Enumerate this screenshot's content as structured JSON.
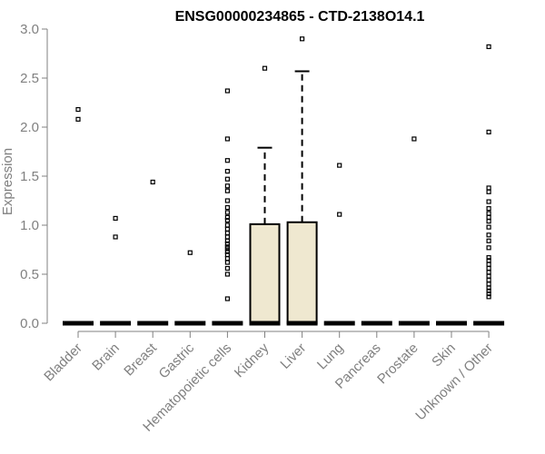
{
  "chart_data": {
    "type": "box",
    "title": "ENSG00000234865 - CTD-2138O14.1",
    "xlabel": "",
    "ylabel": "Expression",
    "ylim": [
      0,
      3.0
    ],
    "yticks": [
      "0.0",
      "0.5",
      "1.0",
      "1.5",
      "2.0",
      "2.5",
      "3.0"
    ],
    "categories": [
      "Bladder",
      "Brain",
      "Breast",
      "Gastric",
      "Hematopoietic cells",
      "Kidney",
      "Liver",
      "Lung",
      "Pancreas",
      "Prostate",
      "Skin",
      "Unknown / Other"
    ],
    "boxes": [
      {
        "category": "Bladder",
        "q1": 0,
        "median": 0,
        "q3": 0,
        "whisker_low": 0,
        "whisker_high": 0
      },
      {
        "category": "Brain",
        "q1": 0,
        "median": 0,
        "q3": 0,
        "whisker_low": 0,
        "whisker_high": 0
      },
      {
        "category": "Breast",
        "q1": 0,
        "median": 0,
        "q3": 0,
        "whisker_low": 0,
        "whisker_high": 0
      },
      {
        "category": "Gastric",
        "q1": 0,
        "median": 0,
        "q3": 0,
        "whisker_low": 0,
        "whisker_high": 0
      },
      {
        "category": "Hematopoietic cells",
        "q1": 0,
        "median": 0,
        "q3": 0,
        "whisker_low": 0,
        "whisker_high": 0
      },
      {
        "category": "Kidney",
        "q1": 0,
        "median": 0,
        "q3": 1.01,
        "whisker_low": 0,
        "whisker_high": 1.79
      },
      {
        "category": "Liver",
        "q1": 0,
        "median": 0,
        "q3": 1.03,
        "whisker_low": 0,
        "whisker_high": 2.57
      },
      {
        "category": "Lung",
        "q1": 0,
        "median": 0,
        "q3": 0,
        "whisker_low": 0,
        "whisker_high": 0
      },
      {
        "category": "Pancreas",
        "q1": 0,
        "median": 0,
        "q3": 0,
        "whisker_low": 0,
        "whisker_high": 0
      },
      {
        "category": "Prostate",
        "q1": 0,
        "median": 0,
        "q3": 0,
        "whisker_low": 0,
        "whisker_high": 0
      },
      {
        "category": "Skin",
        "q1": 0,
        "median": 0,
        "q3": 0,
        "whisker_low": 0,
        "whisker_high": 0
      },
      {
        "category": "Unknown / Other",
        "q1": 0,
        "median": 0,
        "q3": 0,
        "whisker_low": 0,
        "whisker_high": 0
      }
    ],
    "outliers": [
      {
        "category": "Bladder",
        "values": [
          2.18,
          2.08
        ]
      },
      {
        "category": "Brain",
        "values": [
          1.07,
          0.88
        ]
      },
      {
        "category": "Breast",
        "values": [
          1.44
        ]
      },
      {
        "category": "Gastric",
        "values": [
          0.72
        ]
      },
      {
        "category": "Hematopoietic cells",
        "values": [
          2.37,
          1.88,
          1.66,
          1.55,
          1.47,
          1.4,
          1.35,
          1.25,
          1.18,
          1.13,
          1.08,
          1.05,
          1.0,
          0.96,
          0.92,
          0.88,
          0.84,
          0.81,
          0.78,
          0.76,
          0.73,
          0.7,
          0.66,
          0.62,
          0.56,
          0.5,
          0.25
        ]
      },
      {
        "category": "Kidney",
        "values": [
          2.6
        ]
      },
      {
        "category": "Liver",
        "values": [
          2.9
        ]
      },
      {
        "category": "Lung",
        "values": [
          1.61,
          1.11
        ]
      },
      {
        "category": "Prostate",
        "values": [
          1.88
        ]
      },
      {
        "category": "Unknown / Other",
        "values": [
          2.82,
          1.95,
          1.38,
          1.34,
          1.24,
          1.17,
          1.12,
          1.08,
          1.04,
          0.98,
          0.9,
          0.84,
          0.77,
          0.67,
          0.64,
          0.6,
          0.56,
          0.52,
          0.48,
          0.44,
          0.4,
          0.36,
          0.33,
          0.3,
          0.27
        ]
      }
    ],
    "grid": false,
    "legend": "none",
    "colors": {
      "box_fill": "#EFE8D0",
      "box_stroke": "#000000",
      "axis": "#808080",
      "text_muted": "#808080",
      "outlier": "#000000"
    }
  }
}
